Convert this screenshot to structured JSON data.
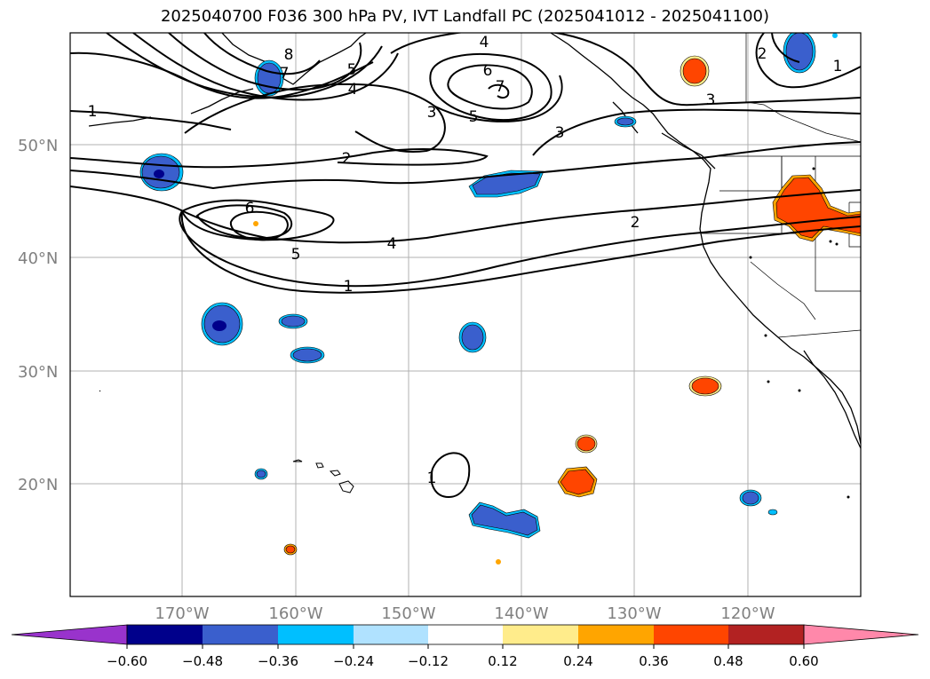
{
  "title": "2025040700 F036 300 hPa PV, IVT Landfall PC (2025041012 - 2025041100)",
  "map": {
    "lat_labels": [
      "50°N",
      "40°N",
      "30°N",
      "20°N"
    ],
    "lon_labels": [
      "170°W",
      "160°W",
      "150°W",
      "140°W",
      "130°W",
      "120°W"
    ],
    "gridlines": true,
    "contour_labels": [
      "1",
      "1",
      "1",
      "1",
      "2",
      "2",
      "2",
      "3",
      "3",
      "3",
      "4",
      "4",
      "4",
      "5",
      "5",
      "5",
      "6",
      "6",
      "7",
      "7",
      "8"
    ]
  },
  "colorbar": {
    "ticks": [
      "−0.60",
      "−0.48",
      "−0.36",
      "−0.24",
      "−0.12",
      "0.12",
      "0.24",
      "0.36",
      "0.48",
      "0.60"
    ],
    "colors": [
      "#9933cc",
      "#00008b",
      "#3a5fcd",
      "#00bfff",
      "#b0e2ff",
      "#ffffff",
      "#ffec8b",
      "#ffa500",
      "#ff4500",
      "#b22222",
      "#ff88aa"
    ]
  },
  "colors": {
    "negative_core": "#00008b",
    "negative_mid": "#3a5fcd",
    "negative_edge": "#00bfff",
    "positive_mid": "#ff4500",
    "positive_edge": "#ffa500",
    "positive_outer": "#ffec8b"
  }
}
